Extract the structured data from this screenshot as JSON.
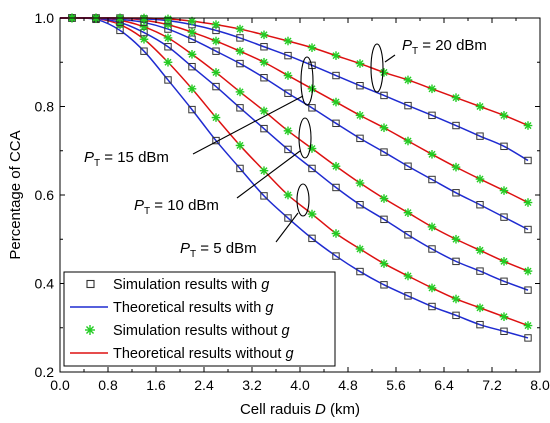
{
  "chart_data": {
    "type": "line",
    "xlabel": "Cell raduis",
    "xlabel_var": "D",
    "xlabel_unit": " (km)",
    "ylabel": "Percentage of CCA",
    "xlim": [
      0.0,
      8.0
    ],
    "ylim": [
      0.2,
      1.0
    ],
    "x_ticks": [
      0.0,
      0.8,
      1.6,
      2.4,
      3.2,
      4.0,
      4.8,
      5.6,
      6.4,
      7.2,
      8.0
    ],
    "x_tick_labels": [
      "0.0",
      "0.8",
      "1.6",
      "2.4",
      "3.2",
      "4.0",
      "4.8",
      "5.6",
      "6.4",
      "7.2",
      "8.0"
    ],
    "y_ticks": [
      0.2,
      0.4,
      0.6,
      0.8,
      1.0
    ],
    "y_tick_labels": [
      "0.2",
      "0.4",
      "0.6",
      "0.8",
      "1.0"
    ],
    "grid": false,
    "legend_position": "lower-left",
    "legend": [
      {
        "text": "Simulation results with ",
        "var": "g",
        "marker": "square",
        "color": "#333333"
      },
      {
        "text": "Theoretical results with ",
        "var": "g",
        "marker": "line",
        "color": "#1f2bd1"
      },
      {
        "text": "Simulation results without ",
        "var": "g",
        "marker": "asterisk",
        "color": "#22cc22"
      },
      {
        "text": "Theoretical results without ",
        "var": "g",
        "marker": "line",
        "color": "#dd1111"
      }
    ],
    "annotations": [
      {
        "prefix": "P",
        "sub": "T",
        "suffix": " = 20 dBm"
      },
      {
        "prefix": "P",
        "sub": "T",
        "suffix": " = 15 dBm"
      },
      {
        "prefix": "P",
        "sub": "T",
        "suffix": " = 10 dBm"
      },
      {
        "prefix": "P",
        "sub": "T",
        "suffix": " = 5 dBm"
      }
    ],
    "x": [
      0.2,
      0.6,
      1.0,
      1.4,
      1.8,
      2.2,
      2.6,
      3.0,
      3.4,
      3.8,
      4.2,
      4.6,
      5.0,
      5.4,
      5.8,
      6.2,
      6.6,
      7.0,
      7.4,
      7.8
    ],
    "series": [
      {
        "power": "5 dBm",
        "kind": "with_g",
        "values": [
          1.0,
          0.997,
          0.972,
          0.925,
          0.86,
          0.793,
          0.723,
          0.66,
          0.598,
          0.548,
          0.502,
          0.462,
          0.427,
          0.397,
          0.372,
          0.348,
          0.328,
          0.307,
          0.292,
          0.277
        ]
      },
      {
        "power": "5 dBm",
        "kind": "without_g",
        "values": [
          1.0,
          0.999,
          0.985,
          0.952,
          0.9,
          0.84,
          0.775,
          0.712,
          0.655,
          0.6,
          0.557,
          0.513,
          0.478,
          0.445,
          0.417,
          0.39,
          0.365,
          0.345,
          0.325,
          0.305
        ]
      },
      {
        "power": "10 dBm",
        "kind": "with_g",
        "values": [
          1.0,
          0.999,
          0.99,
          0.967,
          0.935,
          0.89,
          0.845,
          0.797,
          0.75,
          0.703,
          0.66,
          0.617,
          0.578,
          0.545,
          0.51,
          0.478,
          0.45,
          0.428,
          0.405,
          0.385
        ]
      },
      {
        "power": "10 dBm",
        "kind": "without_g",
        "values": [
          1.0,
          1.0,
          0.995,
          0.98,
          0.955,
          0.918,
          0.877,
          0.833,
          0.79,
          0.745,
          0.705,
          0.665,
          0.627,
          0.592,
          0.56,
          0.528,
          0.5,
          0.475,
          0.45,
          0.428
        ]
      },
      {
        "power": "15 dBm",
        "kind": "with_g",
        "values": [
          1.0,
          1.0,
          0.997,
          0.99,
          0.975,
          0.952,
          0.925,
          0.897,
          0.865,
          0.83,
          0.797,
          0.762,
          0.728,
          0.697,
          0.665,
          0.635,
          0.605,
          0.578,
          0.55,
          0.522
        ]
      },
      {
        "power": "15 dBm",
        "kind": "without_g",
        "values": [
          1.0,
          1.0,
          1.0,
          0.995,
          0.985,
          0.968,
          0.948,
          0.925,
          0.9,
          0.87,
          0.84,
          0.81,
          0.78,
          0.752,
          0.722,
          0.692,
          0.663,
          0.636,
          0.61,
          0.583
        ]
      },
      {
        "power": "20 dBm",
        "kind": "with_g",
        "values": [
          1.0,
          1.0,
          1.0,
          0.998,
          0.994,
          0.985,
          0.972,
          0.955,
          0.935,
          0.915,
          0.893,
          0.87,
          0.847,
          0.825,
          0.802,
          0.78,
          0.757,
          0.733,
          0.71,
          0.678
        ]
      },
      {
        "power": "20 dBm",
        "kind": "without_g",
        "values": [
          1.0,
          1.0,
          1.0,
          1.0,
          0.998,
          0.993,
          0.985,
          0.975,
          0.962,
          0.948,
          0.933,
          0.915,
          0.897,
          0.877,
          0.86,
          0.84,
          0.82,
          0.8,
          0.78,
          0.757
        ]
      }
    ]
  }
}
